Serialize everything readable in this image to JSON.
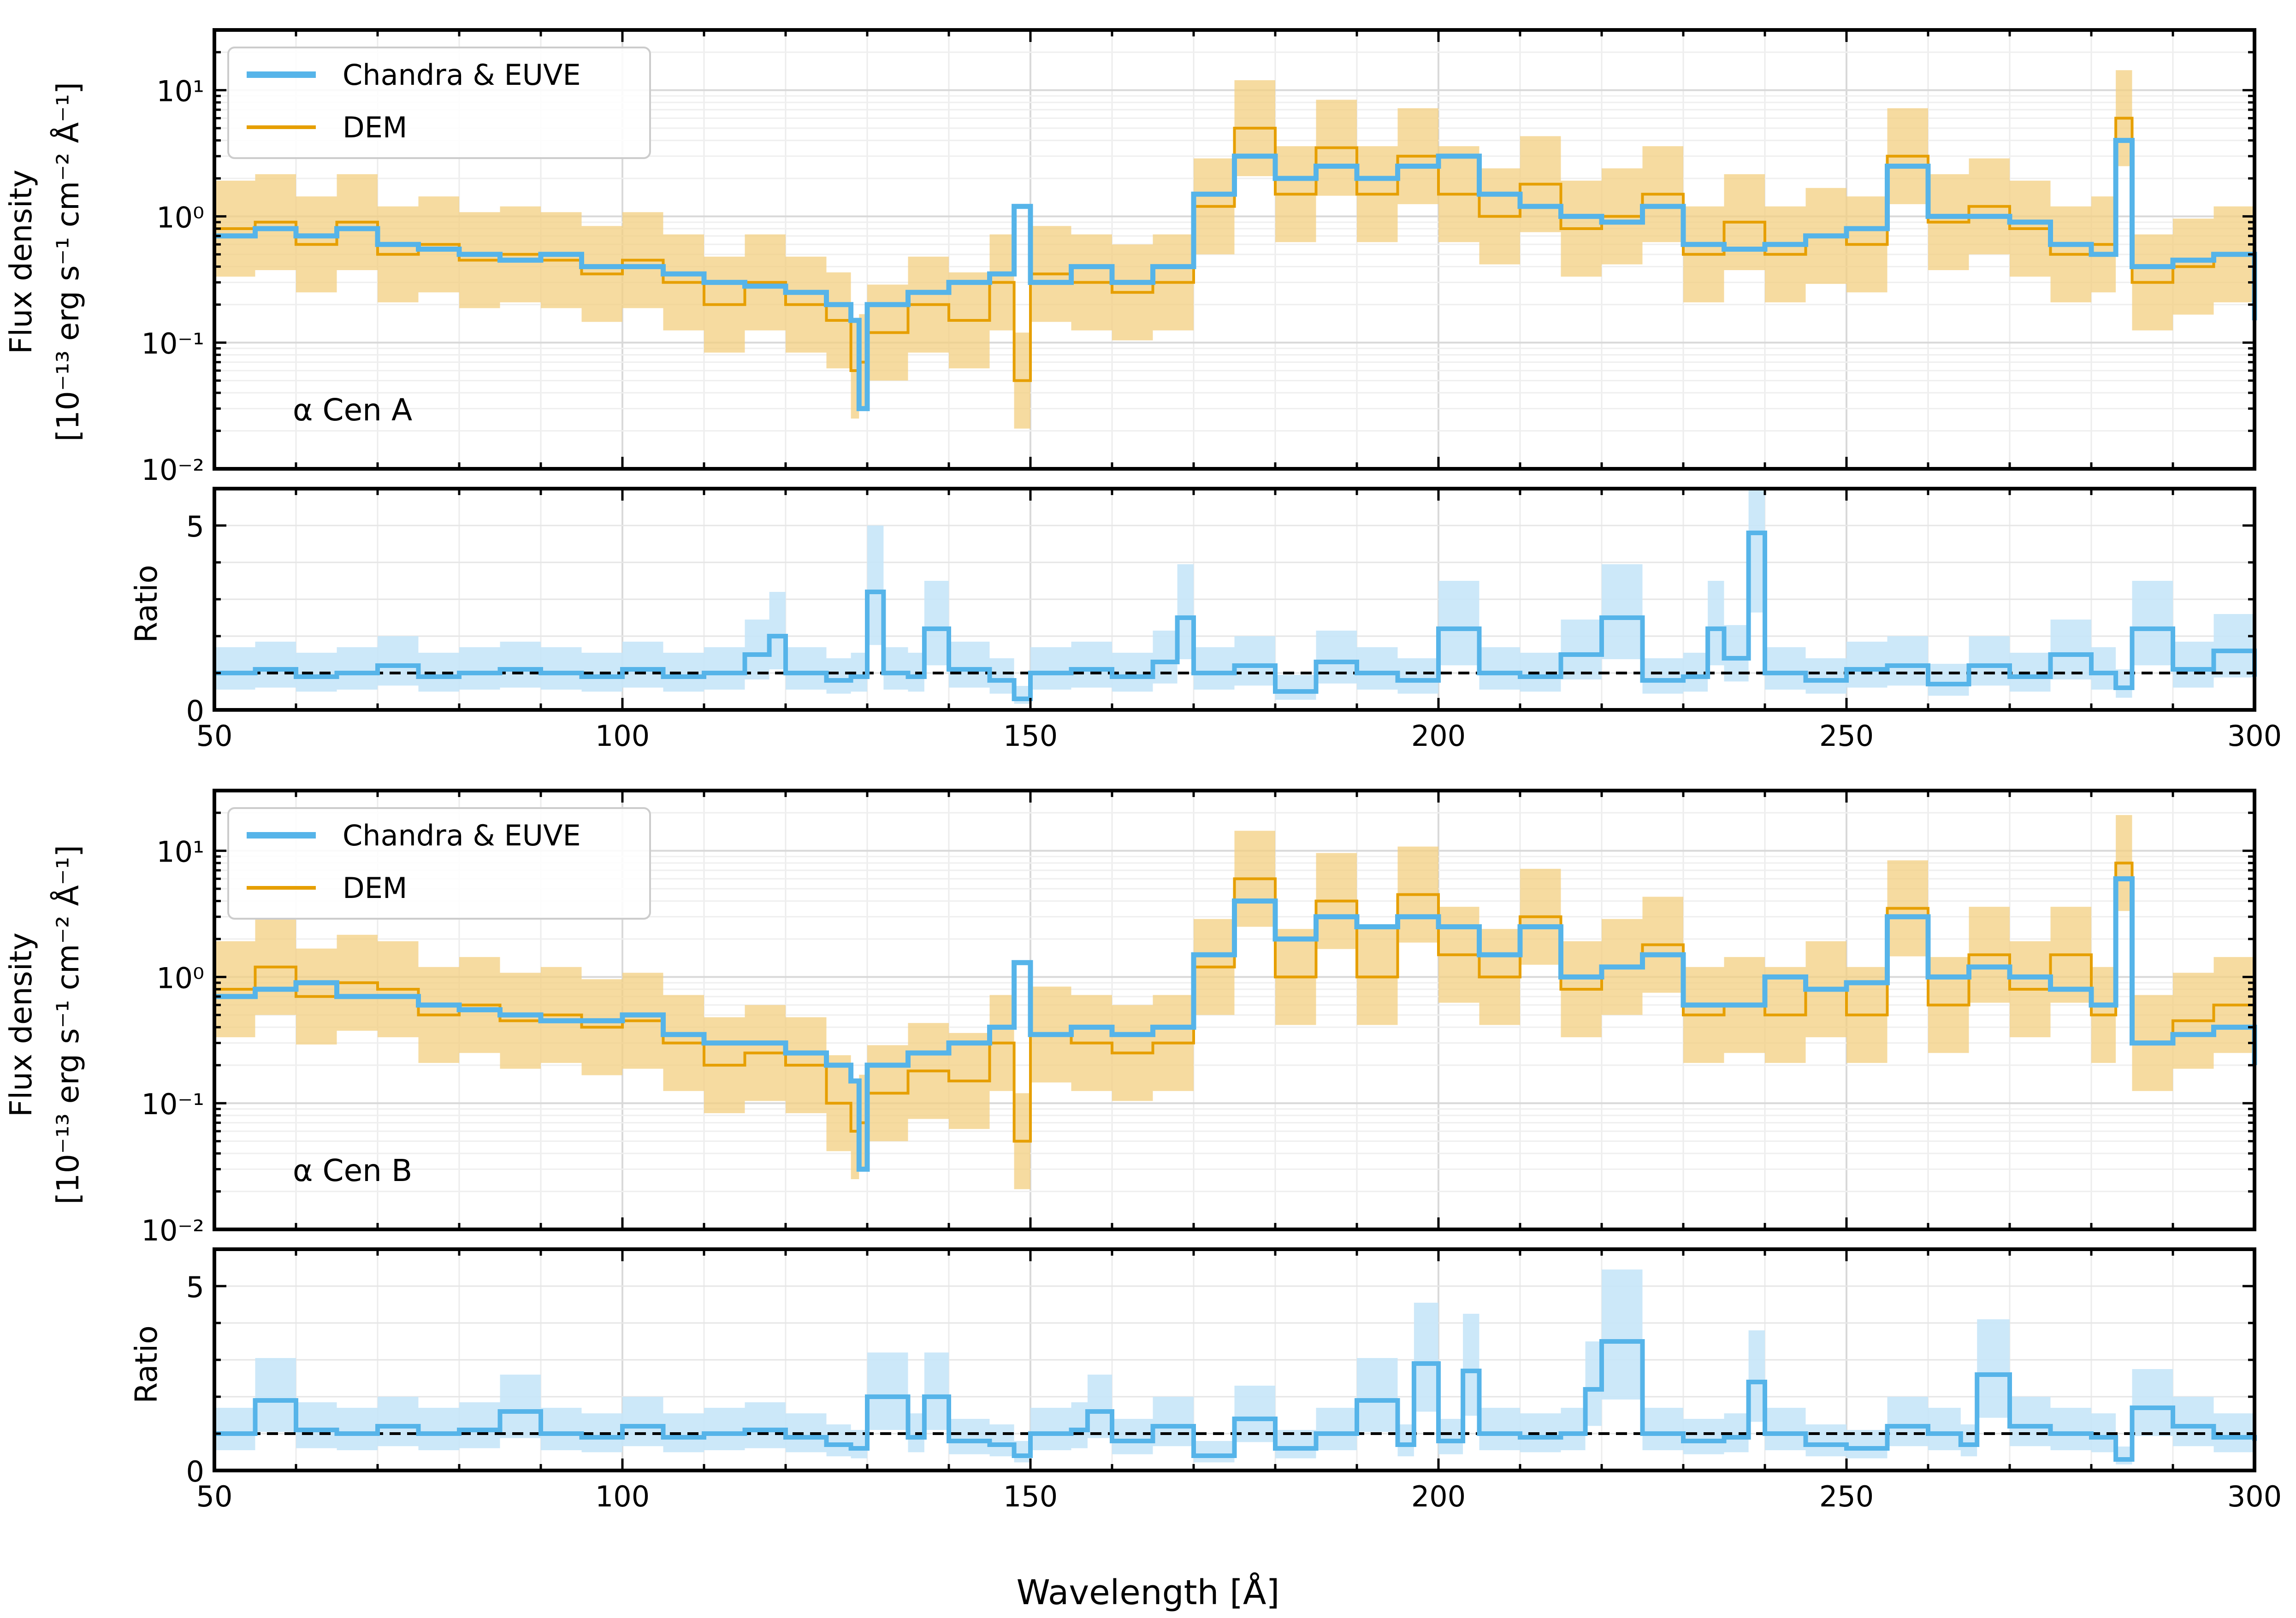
{
  "figure": {
    "xlabel": "Wavelength [Å]",
    "ylabel_top_line": "Flux density",
    "ylabel_bottom_line": "[10⁻¹³ erg s⁻¹ cm⁻² Å⁻¹]",
    "ratio_ylabel": "Ratio",
    "legend": [
      "Chandra & EUVE",
      "DEM"
    ],
    "colors": {
      "observed": "#56b4e9",
      "model": "#e69f00",
      "model_band": "#f3cf80",
      "ratio_band": "#c6e5f8",
      "reference": "#000000"
    }
  },
  "chart_data": [
    {
      "type": "line",
      "panel": "flux",
      "star": "α Cen A",
      "annotation": "α Cen A",
      "xlim": [
        50,
        300
      ],
      "ylim": [
        0.01,
        30
      ],
      "yscale": "log",
      "xticks": [
        50,
        100,
        150,
        200,
        250,
        300
      ],
      "yticks": [
        "10⁻²",
        "10⁻¹",
        "10⁰",
        "10¹"
      ],
      "grid": true,
      "legend_position": "top-left",
      "series": [
        {
          "name": "Chandra & EUVE",
          "style": "step",
          "x": [
            50,
            55,
            60,
            65,
            70,
            75,
            80,
            85,
            90,
            95,
            100,
            105,
            110,
            115,
            120,
            125,
            128,
            129,
            130,
            135,
            140,
            145,
            148,
            150,
            155,
            160,
            165,
            170,
            175,
            180,
            185,
            190,
            195,
            200,
            205,
            210,
            215,
            220,
            225,
            230,
            235,
            240,
            245,
            250,
            255,
            260,
            265,
            270,
            275,
            280,
            283,
            285,
            290,
            295,
            300
          ],
          "values": [
            0.7,
            0.8,
            0.7,
            0.8,
            0.6,
            0.55,
            0.5,
            0.45,
            0.5,
            0.4,
            0.4,
            0.35,
            0.3,
            0.28,
            0.25,
            0.2,
            0.15,
            0.03,
            0.2,
            0.25,
            0.3,
            0.35,
            1.2,
            0.3,
            0.4,
            0.3,
            0.4,
            1.5,
            3.0,
            2.0,
            2.5,
            2.0,
            2.5,
            3.0,
            1.5,
            1.2,
            1.0,
            0.9,
            1.2,
            0.6,
            0.55,
            0.6,
            0.7,
            0.8,
            2.5,
            1.0,
            1.0,
            0.9,
            0.6,
            0.5,
            4.0,
            0.4,
            0.45,
            0.5,
            0.15
          ]
        },
        {
          "name": "DEM",
          "style": "step",
          "x": [
            50,
            55,
            60,
            65,
            70,
            75,
            80,
            85,
            90,
            95,
            100,
            105,
            110,
            115,
            120,
            125,
            128,
            129,
            130,
            135,
            140,
            145,
            148,
            150,
            155,
            160,
            165,
            170,
            175,
            180,
            185,
            190,
            195,
            200,
            205,
            210,
            215,
            220,
            225,
            230,
            235,
            240,
            245,
            250,
            255,
            260,
            265,
            270,
            275,
            280,
            283,
            285,
            290,
            295,
            300
          ],
          "values": [
            0.8,
            0.9,
            0.6,
            0.9,
            0.5,
            0.6,
            0.45,
            0.5,
            0.45,
            0.35,
            0.45,
            0.3,
            0.2,
            0.3,
            0.2,
            0.15,
            0.06,
            0.07,
            0.12,
            0.2,
            0.15,
            0.3,
            0.05,
            0.35,
            0.3,
            0.25,
            0.3,
            1.2,
            5.0,
            1.5,
            3.5,
            1.5,
            3.0,
            1.5,
            1.0,
            1.8,
            0.8,
            1.0,
            1.5,
            0.5,
            0.9,
            0.5,
            0.7,
            0.6,
            3.0,
            0.9,
            1.2,
            0.8,
            0.5,
            0.6,
            6.0,
            0.3,
            0.4,
            0.5,
            0.2
          ]
        }
      ]
    },
    {
      "type": "line",
      "panel": "ratio",
      "star": "α Cen A",
      "ylabel": "Ratio",
      "xlim": [
        50,
        300
      ],
      "ylim": [
        0,
        6
      ],
      "yticks": [
        0,
        5
      ],
      "xticks": [
        50,
        100,
        150,
        200,
        250,
        300
      ],
      "xticklabels": [
        "50",
        "100",
        "150",
        "200",
        "250",
        "300"
      ],
      "reference_line": 1,
      "series": [
        {
          "name": "Ratio",
          "style": "step",
          "x": [
            50,
            55,
            60,
            65,
            70,
            75,
            80,
            85,
            90,
            95,
            100,
            105,
            110,
            115,
            118,
            120,
            125,
            128,
            130,
            132,
            135,
            137,
            140,
            145,
            148,
            150,
            155,
            160,
            165,
            168,
            170,
            175,
            180,
            185,
            190,
            195,
            200,
            205,
            210,
            215,
            220,
            225,
            230,
            233,
            235,
            238,
            240,
            245,
            250,
            255,
            260,
            265,
            270,
            275,
            280,
            283,
            285,
            290,
            295,
            300
          ],
          "values": [
            1.0,
            1.1,
            0.9,
            1.0,
            1.2,
            0.9,
            1.0,
            1.1,
            1.0,
            0.9,
            1.1,
            0.9,
            1.0,
            1.5,
            2.0,
            1.0,
            0.8,
            0.9,
            3.2,
            1.0,
            0.9,
            2.2,
            1.1,
            0.8,
            0.3,
            1.0,
            1.1,
            0.9,
            1.3,
            2.5,
            1.0,
            1.2,
            0.5,
            1.3,
            1.0,
            0.8,
            2.2,
            1.0,
            0.9,
            1.5,
            2.5,
            0.8,
            0.9,
            2.2,
            1.4,
            4.8,
            1.0,
            0.8,
            1.1,
            1.2,
            0.7,
            1.2,
            0.9,
            1.5,
            1.0,
            0.6,
            2.2,
            1.1,
            1.6,
            0.9
          ]
        }
      ]
    },
    {
      "type": "line",
      "panel": "flux",
      "star": "α Cen B",
      "annotation": "α Cen B",
      "xlim": [
        50,
        300
      ],
      "ylim": [
        0.01,
        30
      ],
      "yscale": "log",
      "xticks": [
        50,
        100,
        150,
        200,
        250,
        300
      ],
      "yticks": [
        "10⁻²",
        "10⁻¹",
        "10⁰",
        "10¹"
      ],
      "grid": true,
      "legend_position": "top-left",
      "series": [
        {
          "name": "Chandra & EUVE",
          "style": "step",
          "x": [
            50,
            55,
            60,
            65,
            70,
            75,
            80,
            85,
            90,
            95,
            100,
            105,
            110,
            115,
            120,
            125,
            128,
            129,
            130,
            135,
            140,
            145,
            148,
            150,
            155,
            160,
            165,
            170,
            175,
            180,
            185,
            190,
            195,
            200,
            205,
            210,
            215,
            220,
            225,
            230,
            235,
            240,
            245,
            250,
            255,
            260,
            265,
            270,
            275,
            280,
            283,
            285,
            290,
            295,
            300
          ],
          "values": [
            0.7,
            0.8,
            0.9,
            0.7,
            0.7,
            0.6,
            0.55,
            0.5,
            0.45,
            0.45,
            0.5,
            0.35,
            0.3,
            0.3,
            0.25,
            0.2,
            0.15,
            0.03,
            0.2,
            0.25,
            0.3,
            0.4,
            1.3,
            0.35,
            0.4,
            0.35,
            0.4,
            1.5,
            4.0,
            2.0,
            3.0,
            2.5,
            3.0,
            2.5,
            1.5,
            2.5,
            1.0,
            1.2,
            1.5,
            0.6,
            0.6,
            1.0,
            0.8,
            0.9,
            3.0,
            1.0,
            1.2,
            1.0,
            0.8,
            0.6,
            6.0,
            0.3,
            0.35,
            0.4,
            0.2
          ]
        },
        {
          "name": "DEM",
          "style": "step",
          "x": [
            50,
            55,
            60,
            65,
            70,
            75,
            80,
            85,
            90,
            95,
            100,
            105,
            110,
            115,
            120,
            125,
            128,
            129,
            130,
            135,
            140,
            145,
            148,
            150,
            155,
            160,
            165,
            170,
            175,
            180,
            185,
            190,
            195,
            200,
            205,
            210,
            215,
            220,
            225,
            230,
            235,
            240,
            245,
            250,
            255,
            260,
            265,
            270,
            275,
            280,
            283,
            285,
            290,
            295,
            300
          ],
          "values": [
            0.8,
            1.2,
            0.7,
            0.9,
            0.8,
            0.5,
            0.6,
            0.45,
            0.5,
            0.4,
            0.45,
            0.3,
            0.2,
            0.25,
            0.2,
            0.1,
            0.06,
            0.07,
            0.12,
            0.18,
            0.15,
            0.3,
            0.05,
            0.35,
            0.3,
            0.25,
            0.3,
            1.2,
            6.0,
            1.0,
            4.0,
            1.0,
            4.5,
            1.5,
            1.0,
            3.0,
            0.8,
            1.2,
            1.8,
            0.5,
            0.6,
            0.5,
            0.8,
            0.5,
            3.5,
            0.6,
            1.5,
            0.8,
            1.5,
            0.5,
            8.0,
            0.3,
            0.45,
            0.6,
            0.15
          ]
        }
      ]
    },
    {
      "type": "line",
      "panel": "ratio",
      "star": "α Cen B",
      "ylabel": "Ratio",
      "xlim": [
        50,
        300
      ],
      "ylim": [
        0,
        6
      ],
      "yticks": [
        0,
        5
      ],
      "xticks": [
        50,
        100,
        150,
        200,
        250,
        300
      ],
      "xticklabels": [
        "50",
        "100",
        "150",
        "200",
        "250",
        "300"
      ],
      "reference_line": 1,
      "series": [
        {
          "name": "Ratio",
          "style": "step",
          "x": [
            50,
            55,
            60,
            65,
            70,
            75,
            80,
            85,
            90,
            95,
            100,
            105,
            110,
            115,
            120,
            125,
            128,
            130,
            135,
            137,
            140,
            145,
            148,
            150,
            155,
            157,
            160,
            165,
            170,
            175,
            180,
            185,
            190,
            195,
            197,
            200,
            203,
            205,
            210,
            215,
            218,
            220,
            225,
            230,
            235,
            238,
            240,
            245,
            250,
            255,
            260,
            264,
            266,
            270,
            275,
            280,
            283,
            285,
            290,
            295,
            300
          ],
          "values": [
            1.0,
            1.9,
            1.1,
            1.0,
            1.2,
            1.0,
            1.1,
            1.6,
            1.0,
            0.9,
            1.2,
            0.9,
            1.0,
            1.1,
            0.9,
            0.7,
            0.6,
            2.0,
            0.9,
            2.0,
            0.8,
            0.7,
            0.4,
            1.0,
            1.1,
            1.6,
            0.8,
            1.2,
            0.4,
            1.4,
            0.6,
            1.0,
            1.9,
            0.7,
            2.9,
            0.8,
            2.7,
            1.0,
            0.9,
            1.0,
            2.2,
            3.5,
            1.0,
            0.8,
            0.9,
            2.4,
            1.0,
            0.7,
            0.6,
            1.2,
            1.0,
            0.7,
            2.6,
            1.2,
            1.0,
            0.9,
            0.3,
            1.7,
            1.2,
            0.9,
            0.8
          ]
        }
      ]
    }
  ]
}
